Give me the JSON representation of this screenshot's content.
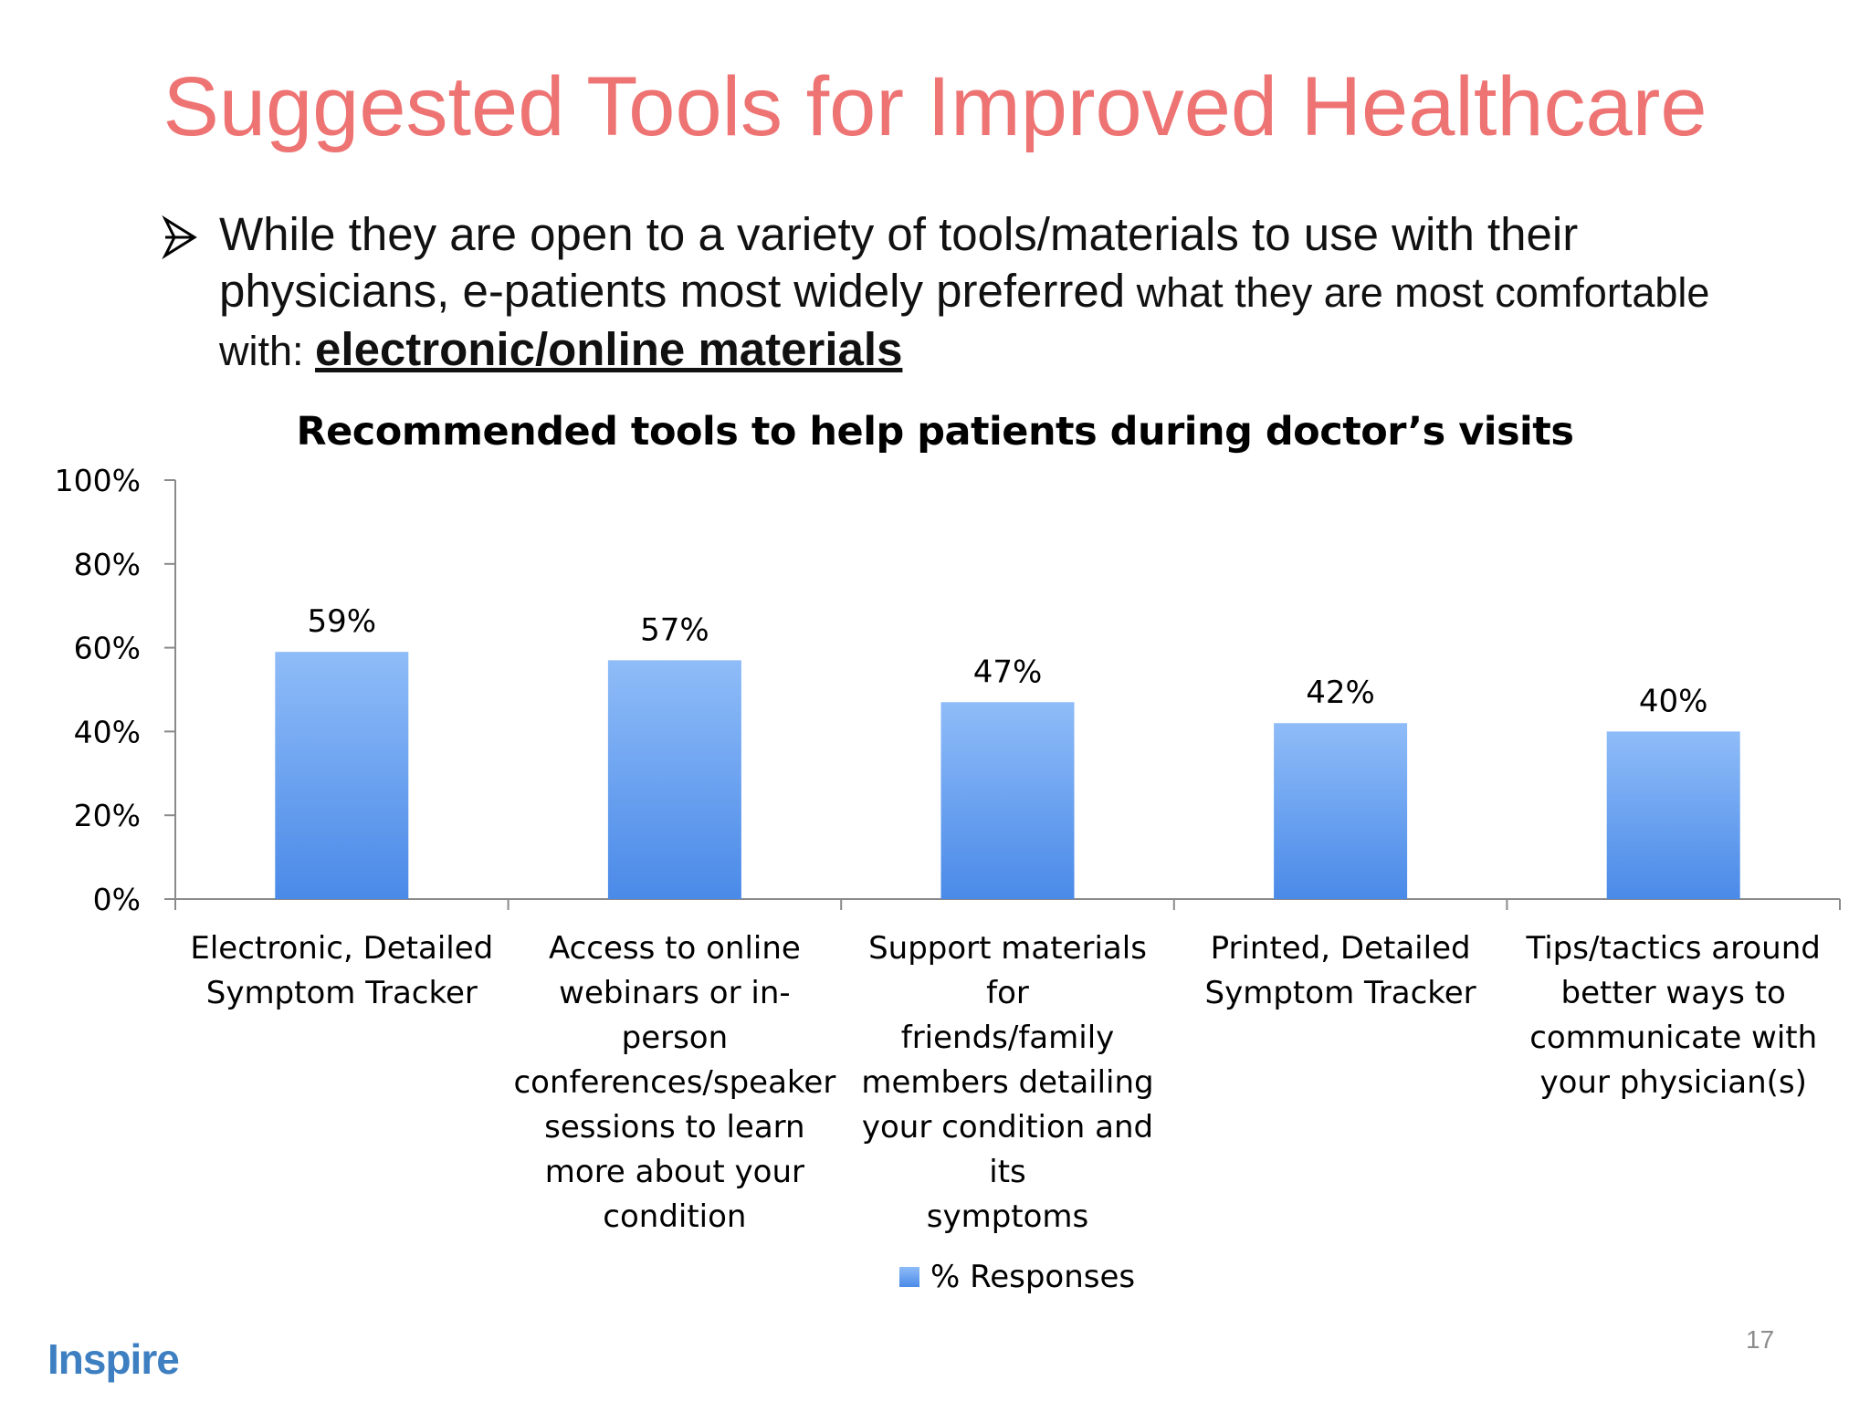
{
  "slide": {
    "title": "Suggested Tools for Improved Healthcare",
    "bullet_part1": "While they are open to a variety of tools/materials to use with their physicians, e-patients most widely preferred",
    "bullet_part2": " what they are most comfortable with: ",
    "bullet_emphasis": "electronic/online materials",
    "page_number": "17",
    "logo_text": "Inspire"
  },
  "chart_data": {
    "type": "bar",
    "title": "Recommended tools to help patients during doctor’s visits",
    "categories": [
      "Electronic, Detailed Symptom Tracker",
      "Access to online webinars or in-person conferences/speaker sessions to learn more about your condition",
      "Support materials for friends/family members detailing your condition and its symptoms",
      "Printed, Detailed Symptom Tracker",
      "Tips/tactics around better ways to communicate with your physician(s)"
    ],
    "category_lines": [
      [
        "Electronic, Detailed",
        "Symptom Tracker"
      ],
      [
        "Access to online",
        "webinars or in-person",
        "conferences/speaker",
        "sessions to learn",
        "more about your",
        "condition"
      ],
      [
        "Support materials for",
        "friends/family",
        "members detailing",
        "your condition and its",
        "symptoms"
      ],
      [
        "Printed, Detailed",
        "Symptom Tracker"
      ],
      [
        "Tips/tactics around",
        "better ways to",
        "communicate with",
        "your physician(s)"
      ]
    ],
    "series": [
      {
        "name": "% Responses",
        "values": [
          59,
          57,
          47,
          42,
          40
        ]
      }
    ],
    "data_labels": [
      "59%",
      "57%",
      "47%",
      "42%",
      "40%"
    ],
    "y_ticks": [
      "0%",
      "20%",
      "40%",
      "60%",
      "80%",
      "100%"
    ],
    "ylim": [
      0,
      100
    ],
    "grid": false,
    "legend_position": "bottom",
    "bar_color_top": "#8fbcf8",
    "bar_color_bottom": "#4a8ae8"
  },
  "colors": {
    "title": "#ee7373",
    "logo": "#3d7fc1"
  }
}
